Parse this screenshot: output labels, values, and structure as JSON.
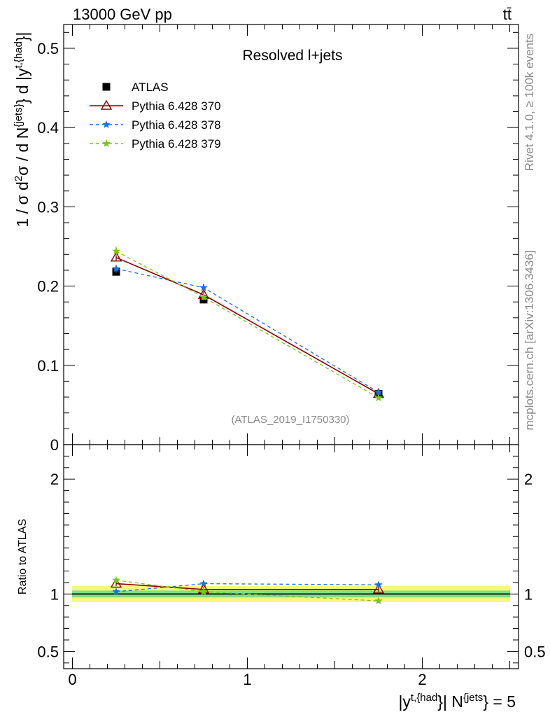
{
  "header": {
    "left": "13000 GeV pp",
    "right_base": "t",
    "right_over": "t̄"
  },
  "side_labels": {
    "rivet": "Rivet 4.1.0, ≥ 100k events",
    "mcplots": "mcplots.cern.ch [arXiv:1306.3436]"
  },
  "colors": {
    "atlas": "#000000",
    "p370": "#8b0000",
    "p378": "#1f6fdc",
    "p379": "#7fc31c",
    "band_inner": "#7fe08a",
    "band_outer": "#f5f77a"
  },
  "chart_data": [
    {
      "type": "line",
      "panel": "main",
      "title": "Resolved l+jets",
      "watermark": "(ATLAS_2019_I1750330)",
      "ylabel": "1 / σ d²σ / d N^{jets} d |y^{t,{had}}|",
      "ylabel_parts": [
        "1 / σ d",
        "2",
        "σ / d N",
        "{jets}",
        "} d |y",
        "t,{had",
        "}|"
      ],
      "xlim": [
        -0.05,
        2.55
      ],
      "ylim": [
        0,
        0.53
      ],
      "x_ticks": [
        0,
        1,
        2
      ],
      "y_ticks": [
        0.1,
        0.2,
        0.3,
        0.4,
        0.5
      ],
      "y_tick_labels": [
        "0.1",
        "0.2",
        "0.3",
        "0.4",
        "0.5"
      ],
      "y_zero_label": "0",
      "legend_position": "top-left",
      "x": [
        0.25,
        0.75,
        1.75
      ],
      "series": [
        {
          "name": "ATLAS",
          "marker": "square",
          "style": "none",
          "color": "#000000",
          "values": [
            0.218,
            0.183,
            0.064
          ],
          "errors": [
            0.004,
            0.004,
            0.002
          ]
        },
        {
          "name": "Pythia 6.428 370",
          "marker": "open-triangle",
          "style": "solid",
          "color": "#8b0000",
          "values": [
            0.236,
            0.189,
            0.064
          ],
          "errors": [
            0.005,
            0.004,
            0.002
          ]
        },
        {
          "name": "Pythia 6.428 378",
          "marker": "star",
          "style": "dashed",
          "color": "#1f6fdc",
          "values": [
            0.222,
            0.198,
            0.066
          ],
          "errors": [
            0.005,
            0.005,
            0.002
          ]
        },
        {
          "name": "Pythia 6.428 379",
          "marker": "star",
          "style": "dashed",
          "color": "#7fc31c",
          "values": [
            0.244,
            0.186,
            0.059
          ],
          "errors": [
            0.006,
            0.004,
            0.002
          ]
        }
      ]
    },
    {
      "type": "line",
      "panel": "ratio",
      "ylabel": "Ratio to ATLAS",
      "xlabel_parts": [
        "|y",
        "t,{had",
        "}| N",
        "{jets",
        "} = 5"
      ],
      "xlim": [
        -0.05,
        2.55
      ],
      "ylim": [
        0.35,
        2.3
      ],
      "x_ticks": [
        0,
        1,
        2
      ],
      "x_tick_labels": [
        "0",
        "1",
        "2"
      ],
      "y_ticks": [
        0.5,
        1,
        2
      ],
      "y_tick_labels": [
        "0.5",
        "1",
        "2"
      ],
      "reference": 1,
      "band_inner": [
        0.97,
        1.03
      ],
      "band_outer": [
        0.93,
        1.07
      ],
      "x": [
        0.25,
        0.75,
        1.75
      ],
      "series": [
        {
          "name": "Pythia 6.428 370",
          "marker": "open-triangle",
          "style": "solid",
          "color": "#8b0000",
          "values": [
            1.09,
            1.04,
            1.04
          ],
          "errors": [
            0.02,
            0.02,
            0.02
          ]
        },
        {
          "name": "Pythia 6.428 378",
          "marker": "star",
          "style": "dashed",
          "color": "#1f6fdc",
          "values": [
            1.02,
            1.09,
            1.08
          ],
          "errors": [
            0.02,
            0.02,
            0.02
          ]
        },
        {
          "name": "Pythia 6.428 379",
          "marker": "star",
          "style": "dashed",
          "color": "#7fc31c",
          "values": [
            1.12,
            1.02,
            0.94
          ],
          "errors": [
            0.02,
            0.02,
            0.02
          ]
        }
      ]
    }
  ]
}
